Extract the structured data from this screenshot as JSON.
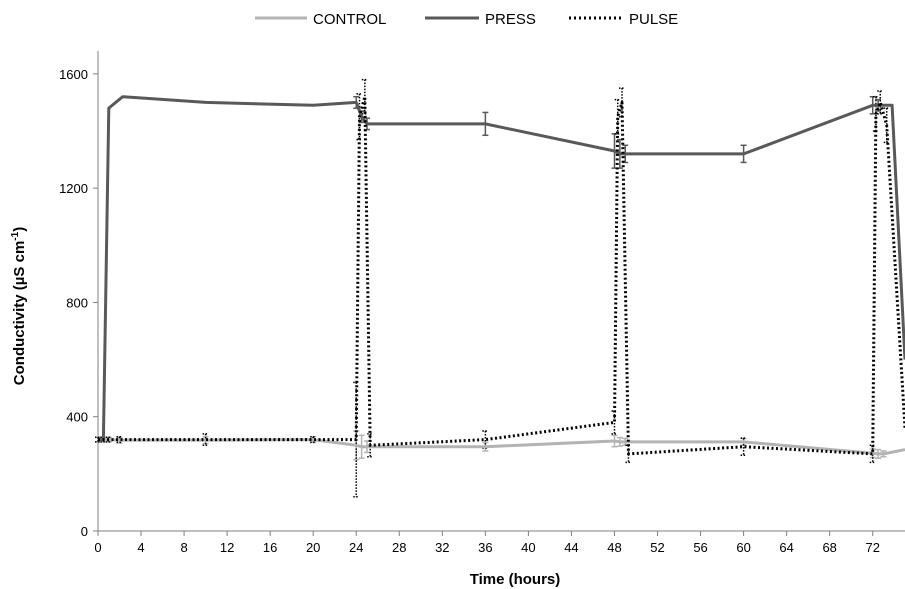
{
  "chart_data": {
    "type": "line",
    "xlabel": "Time (hours)",
    "ylabel_main": "Conductivity (µS cm",
    "ylabel_sup": "-1",
    "ylabel_close": ")",
    "xlim": [
      0,
      75
    ],
    "ylim": [
      0,
      1750
    ],
    "xticks": [
      0,
      4,
      8,
      12,
      16,
      20,
      24,
      28,
      32,
      36,
      40,
      44,
      48,
      52,
      56,
      60,
      64,
      68,
      72
    ],
    "yticks": [
      0,
      400,
      800,
      1200,
      1600
    ],
    "grid": false,
    "legend_position": "top-center",
    "series": [
      {
        "name": "CONTROL",
        "color": "#b3b3b3",
        "style": "solid",
        "x": [
          0,
          0.5,
          1,
          2,
          10,
          20,
          24,
          24.5,
          25,
          36,
          48,
          48.5,
          49,
          60,
          72,
          72.5,
          73,
          75
        ],
        "y": [
          320,
          320,
          320,
          318,
          318,
          320,
          300,
          295,
          295,
          295,
          315,
          312,
          312,
          312,
          272,
          270,
          270,
          285
        ],
        "err": [
          8,
          8,
          8,
          10,
          12,
          10,
          50,
          40,
          20,
          15,
          20,
          15,
          12,
          12,
          15,
          15,
          10,
          0
        ]
      },
      {
        "name": "PRESS",
        "color": "#595959",
        "style": "solid",
        "x": [
          0,
          0.5,
          1,
          2.3,
          10,
          20,
          24,
          24.5,
          25,
          36,
          48,
          48.5,
          49,
          60,
          72,
          72.5,
          73.8,
          75
        ],
        "y": [
          320,
          320,
          1480,
          1520,
          1500,
          1490,
          1500,
          1450,
          1425,
          1425,
          1330,
          1320,
          1320,
          1320,
          1490,
          1490,
          1490,
          600
        ],
        "err": [
          0,
          0,
          0,
          0,
          0,
          0,
          20,
          20,
          20,
          40,
          60,
          50,
          30,
          30,
          30,
          20,
          0,
          0
        ]
      },
      {
        "name": "PULSE",
        "color": "#000000",
        "style": "dotted",
        "x": [
          0,
          0.5,
          1,
          2,
          10,
          20,
          24,
          24.3,
          24.8,
          25.3,
          36,
          48,
          48.3,
          48.7,
          49.3,
          60,
          72,
          72.3,
          72.7,
          73.3,
          75
        ],
        "y": [
          320,
          320,
          320,
          320,
          320,
          320,
          320,
          1450,
          1520,
          300,
          320,
          380,
          1450,
          1500,
          270,
          295,
          270,
          1460,
          1500,
          1420,
          360
        ],
        "err": [
          8,
          8,
          8,
          10,
          20,
          10,
          200,
          80,
          60,
          40,
          30,
          40,
          60,
          50,
          30,
          30,
          30,
          60,
          40,
          60,
          0
        ]
      }
    ]
  }
}
